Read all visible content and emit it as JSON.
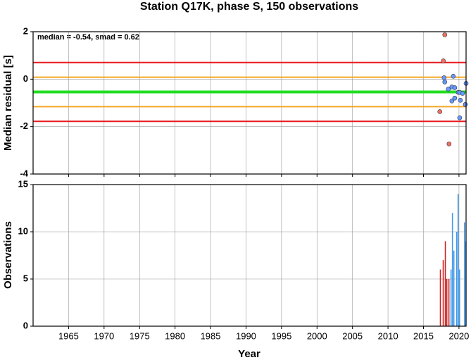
{
  "chart_data": [
    {
      "type": "scatter",
      "title": "Station Q17K, phase S, 150 observations",
      "y_label": "Median residual [s]",
      "annotation": "median = -0.54, smad = 0.62",
      "xlim": [
        1960,
        2021
      ],
      "xticks": [
        1965,
        1970,
        1975,
        1980,
        1985,
        1990,
        1995,
        2000,
        2005,
        2010,
        2015,
        2020
      ],
      "ylim": [
        -4,
        2
      ],
      "yticks": [
        -4,
        -2,
        0,
        2
      ],
      "grid": true,
      "hlines": [
        {
          "value": 0.7,
          "color": "#e8191c"
        },
        {
          "value": -1.78,
          "color": "#e8191c"
        },
        {
          "value": 0.08,
          "color": "#f5a623"
        },
        {
          "value": -1.16,
          "color": "#f5a623"
        },
        {
          "value": -0.54,
          "color": "#22dd22"
        }
      ],
      "series": [
        {
          "color": "#f07060",
          "x": [
            2018.0,
            2017.8,
            2017.3,
            2018.6
          ],
          "values": [
            1.87,
            0.77,
            -1.37,
            -2.73
          ]
        },
        {
          "color": "#6699ff",
          "x": [
            2017.9,
            2018.0,
            2018.5,
            2019.2,
            2019.0,
            2019.4,
            2019.0,
            2019.4,
            2019.9,
            2020.1,
            2020.2,
            2020.1,
            2021.0,
            2020.9,
            2020.5
          ],
          "values": [
            0.06,
            -0.12,
            -0.42,
            0.12,
            -0.33,
            -0.36,
            -0.92,
            -0.8,
            -0.56,
            -0.56,
            -0.89,
            -1.63,
            -0.18,
            -1.07,
            -0.6
          ]
        }
      ]
    },
    {
      "type": "bar",
      "y_label": "Observations",
      "x_label": "Year",
      "xlim": [
        1960,
        2021
      ],
      "xticks": [
        1965,
        1970,
        1975,
        1980,
        1985,
        1990,
        1995,
        2000,
        2005,
        2010,
        2015,
        2020
      ],
      "ylim": [
        0,
        15
      ],
      "yticks": [
        0,
        5,
        10,
        15
      ],
      "grid": true,
      "series": [
        {
          "color": "#cc2222",
          "x": [
            2017.4,
            2017.8,
            2018.1,
            2018.3,
            2018.6
          ],
          "values": [
            6,
            7,
            9,
            5,
            5
          ]
        },
        {
          "color": "#4499e8",
          "x": [
            2018.9,
            2019.1,
            2019.3,
            2019.7,
            2019.9,
            2020.1,
            2020.8,
            2021.0
          ],
          "values": [
            6,
            12,
            8,
            10,
            14,
            6,
            11,
            9
          ]
        }
      ]
    }
  ]
}
